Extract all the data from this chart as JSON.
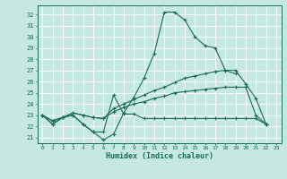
{
  "xlabel": "Humidex (Indice chaleur)",
  "bg_color": "#c5e8e2",
  "grid_color": "#b8d8d0",
  "line_color": "#1a6b5a",
  "xlim": [
    -0.5,
    23.5
  ],
  "ylim": [
    20.5,
    32.8
  ],
  "xticks": [
    0,
    1,
    2,
    3,
    4,
    5,
    6,
    7,
    8,
    9,
    10,
    11,
    12,
    13,
    14,
    15,
    16,
    17,
    18,
    19,
    20,
    21,
    22,
    23
  ],
  "yticks": [
    21,
    22,
    23,
    24,
    25,
    26,
    27,
    28,
    29,
    30,
    31,
    32
  ],
  "lines": [
    [
      23.0,
      22.2,
      22.8,
      23.0,
      22.2,
      21.5,
      20.8,
      21.3,
      23.2,
      24.6,
      26.3,
      28.5,
      32.2,
      32.2,
      31.5,
      30.0,
      29.2,
      29.0,
      27.0,
      26.7,
      null,
      null,
      22.2
    ],
    [
      23.0,
      22.2,
      22.8,
      23.0,
      22.2,
      21.5,
      21.5,
      24.8,
      23.1,
      23.1,
      22.7,
      22.7,
      22.7,
      22.7,
      22.7,
      22.7,
      22.7,
      22.7,
      22.7,
      22.7,
      22.7,
      22.7,
      22.2
    ],
    [
      23.0,
      22.5,
      22.8,
      23.2,
      23.0,
      22.8,
      22.7,
      23.6,
      24.0,
      24.4,
      24.8,
      25.2,
      25.5,
      25.9,
      26.3,
      26.5,
      26.7,
      26.9,
      27.0,
      27.0,
      25.8,
      24.5,
      22.2
    ],
    [
      23.0,
      22.5,
      22.8,
      23.2,
      23.0,
      22.8,
      22.7,
      23.3,
      23.7,
      24.0,
      24.2,
      24.5,
      24.7,
      25.0,
      25.1,
      25.2,
      25.3,
      25.4,
      25.5,
      25.5,
      25.5,
      23.0,
      22.2
    ]
  ]
}
